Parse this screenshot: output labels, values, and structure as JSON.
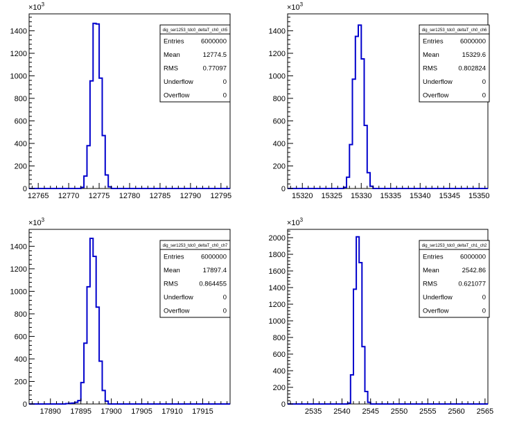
{
  "chart_data": [
    {
      "type": "bar",
      "stats": {
        "name": "dig_ser1253_tdc0_deltaT_ch0_ch5",
        "rows": [
          {
            "label": "Entries",
            "value": "6000000"
          },
          {
            "label": "Mean",
            "value": "12774.5"
          },
          {
            "label": "RMS",
            "value": "0.77097"
          },
          {
            "label": "Underflow",
            "value": "0"
          },
          {
            "label": "Overflow",
            "value": "0"
          }
        ]
      },
      "y_multiplier": "×10",
      "y_multiplier_exp": "3",
      "xlim": [
        12763.5,
        12796.5
      ],
      "ylim": [
        0,
        1550
      ],
      "x_ticks": [
        12765,
        12770,
        12775,
        12780,
        12785,
        12790,
        12795
      ],
      "y_ticks": [
        0,
        200,
        400,
        600,
        800,
        1000,
        1200,
        1400
      ],
      "bin_width": 0.5,
      "bins": [
        {
          "x": 12772.0,
          "y": 10
        },
        {
          "x": 12772.5,
          "y": 110
        },
        {
          "x": 12773.0,
          "y": 380
        },
        {
          "x": 12773.5,
          "y": 955
        },
        {
          "x": 12774.0,
          "y": 1465
        },
        {
          "x": 12774.5,
          "y": 1460
        },
        {
          "x": 12775.0,
          "y": 980
        },
        {
          "x": 12775.5,
          "y": 470
        },
        {
          "x": 12776.0,
          "y": 120
        },
        {
          "x": 12776.5,
          "y": 15
        }
      ]
    },
    {
      "type": "bar",
      "stats": {
        "name": "dig_ser1253_tdc0_deltaT_ch0_ch6",
        "rows": [
          {
            "label": "Entries",
            "value": "6000000"
          },
          {
            "label": "Mean",
            "value": "15329.6"
          },
          {
            "label": "RMS",
            "value": "0.802824"
          },
          {
            "label": "Underflow",
            "value": "0"
          },
          {
            "label": "Overflow",
            "value": "0"
          }
        ]
      },
      "y_multiplier": "×10",
      "y_multiplier_exp": "3",
      "xlim": [
        15317.5,
        15351.5
      ],
      "ylim": [
        0,
        1550
      ],
      "x_ticks": [
        15320,
        15325,
        15330,
        15335,
        15340,
        15345,
        15350
      ],
      "y_ticks": [
        0,
        200,
        400,
        600,
        800,
        1000,
        1200,
        1400
      ],
      "bin_width": 0.5,
      "bins": [
        {
          "x": 15327.0,
          "y": 10
        },
        {
          "x": 15327.5,
          "y": 100
        },
        {
          "x": 15328.0,
          "y": 390
        },
        {
          "x": 15328.5,
          "y": 970
        },
        {
          "x": 15329.0,
          "y": 1350
        },
        {
          "x": 15329.5,
          "y": 1450
        },
        {
          "x": 15330.0,
          "y": 1150
        },
        {
          "x": 15330.5,
          "y": 560
        },
        {
          "x": 15331.0,
          "y": 140
        },
        {
          "x": 15331.5,
          "y": 20
        }
      ]
    },
    {
      "type": "bar",
      "stats": {
        "name": "dig_ser1253_tdc0_deltaT_ch0_ch7",
        "rows": [
          {
            "label": "Entries",
            "value": "6000000"
          },
          {
            "label": "Mean",
            "value": "17897.4"
          },
          {
            "label": "RMS",
            "value": "0.864455"
          },
          {
            "label": "Underflow",
            "value": "0"
          },
          {
            "label": "Overflow",
            "value": "0"
          }
        ]
      },
      "y_multiplier": "×10",
      "y_multiplier_exp": "3",
      "xlim": [
        17886.5,
        17919.5
      ],
      "ylim": [
        0,
        1550
      ],
      "x_ticks": [
        17890,
        17895,
        17900,
        17905,
        17910,
        17915
      ],
      "y_ticks": [
        0,
        200,
        400,
        600,
        800,
        1000,
        1200,
        1400
      ],
      "bin_width": 0.5,
      "bins": [
        {
          "x": 17892.5,
          "y": 3
        },
        {
          "x": 17893.0,
          "y": 6
        },
        {
          "x": 17893.5,
          "y": 8
        },
        {
          "x": 17894.0,
          "y": 15
        },
        {
          "x": 17894.5,
          "y": 30
        },
        {
          "x": 17895.0,
          "y": 190
        },
        {
          "x": 17895.5,
          "y": 540
        },
        {
          "x": 17896.0,
          "y": 1040
        },
        {
          "x": 17896.5,
          "y": 1470
        },
        {
          "x": 17897.0,
          "y": 1310
        },
        {
          "x": 17897.5,
          "y": 860
        },
        {
          "x": 17898.0,
          "y": 380
        },
        {
          "x": 17898.5,
          "y": 120
        },
        {
          "x": 17899.0,
          "y": 25
        }
      ]
    },
    {
      "type": "bar",
      "stats": {
        "name": "dig_ser1253_tdc0_deltaT_ch1_ch2",
        "rows": [
          {
            "label": "Entries",
            "value": "6000000"
          },
          {
            "label": "Mean",
            "value": "2542.86"
          },
          {
            "label": "RMS",
            "value": "0.621077"
          },
          {
            "label": "Underflow",
            "value": "0"
          },
          {
            "label": "Overflow",
            "value": "0"
          }
        ]
      },
      "y_multiplier": "×10",
      "y_multiplier_exp": "3",
      "xlim": [
        2530.5,
        2565.5
      ],
      "ylim": [
        0,
        2100
      ],
      "x_ticks": [
        2535,
        2540,
        2545,
        2550,
        2555,
        2560,
        2565
      ],
      "y_ticks": [
        0,
        200,
        400,
        600,
        800,
        1000,
        1200,
        1400,
        1600,
        1800,
        2000
      ],
      "bin_width": 0.5,
      "bins": [
        {
          "x": 2541.0,
          "y": 10
        },
        {
          "x": 2541.5,
          "y": 350
        },
        {
          "x": 2542.0,
          "y": 1380
        },
        {
          "x": 2542.5,
          "y": 2010
        },
        {
          "x": 2543.0,
          "y": 1700
        },
        {
          "x": 2543.5,
          "y": 690
        },
        {
          "x": 2544.0,
          "y": 150
        },
        {
          "x": 2544.5,
          "y": 20
        }
      ]
    }
  ]
}
